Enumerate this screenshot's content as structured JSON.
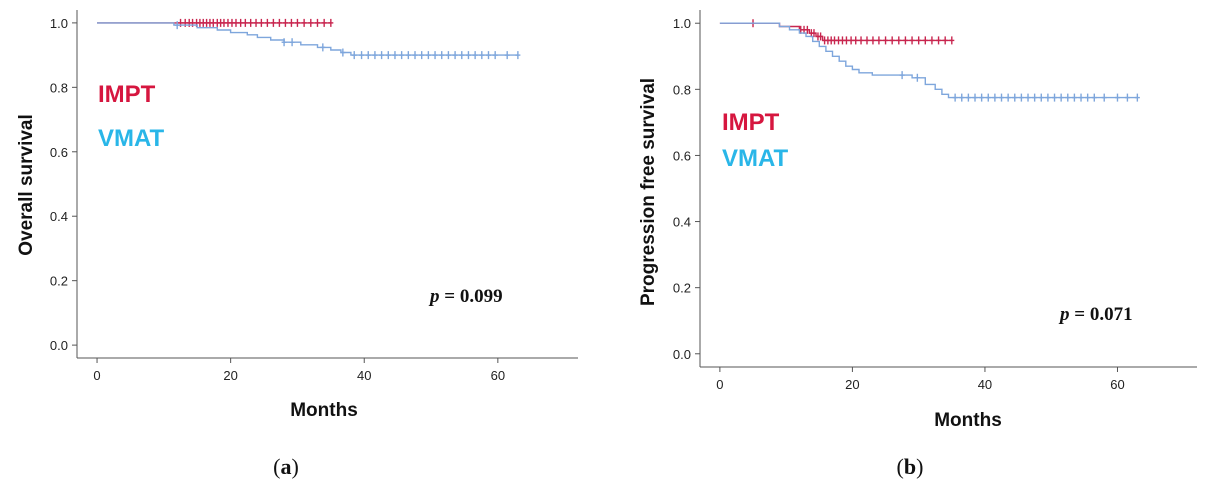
{
  "chart_data": [
    {
      "type": "line",
      "caption": {
        "open": "(",
        "letter": "a",
        "close": ")"
      },
      "ylabel": "Overall  survival",
      "xlabel": "Months",
      "xlim": [
        -3,
        72
      ],
      "ylim": [
        -0.04,
        1.04
      ],
      "xticks": [
        0,
        20,
        40,
        60
      ],
      "yticks": [
        0.0,
        0.2,
        0.4,
        0.6,
        0.8,
        1.0
      ],
      "ytick_labels": [
        "0.0",
        "0.2",
        "0.4",
        "0.6",
        "0.8",
        "1.0"
      ],
      "pvalue": {
        "symbol": "p",
        "text": " = 0.099"
      },
      "legend": [
        {
          "name": "IMPT",
          "color": "#d6163f"
        },
        {
          "name": "VMAT",
          "color": "#29b6e8"
        }
      ],
      "series": [
        {
          "name": "IMPT",
          "color": "#c8264f",
          "steps": [
            [
              0,
              1.0
            ],
            [
              35,
              1.0
            ]
          ],
          "censored": [
            12.5,
            13.2,
            13.8,
            14.3,
            14.9,
            15.4,
            15.9,
            16.4,
            16.9,
            17.4,
            18.0,
            18.5,
            19.0,
            19.6,
            20.2,
            20.8,
            21.5,
            22.2,
            23.0,
            23.8,
            24.6,
            25.5,
            26.4,
            27.3,
            28.2,
            29.1,
            30.0,
            31.0,
            32.0,
            33.0,
            34.0,
            35.0
          ]
        },
        {
          "name": "VMAT",
          "color": "#7ea6dc",
          "steps": [
            [
              0,
              1.0
            ],
            [
              11.5,
              1.0
            ],
            [
              11.5,
              0.993
            ],
            [
              15,
              0.993
            ],
            [
              15,
              0.985
            ],
            [
              18,
              0.985
            ],
            [
              18,
              0.978
            ],
            [
              20,
              0.978
            ],
            [
              20,
              0.97
            ],
            [
              22.5,
              0.97
            ],
            [
              22.5,
              0.963
            ],
            [
              24,
              0.963
            ],
            [
              24,
              0.955
            ],
            [
              26,
              0.955
            ],
            [
              26,
              0.947
            ],
            [
              28,
              0.947
            ],
            [
              28,
              0.94
            ],
            [
              30.5,
              0.94
            ],
            [
              30.5,
              0.932
            ],
            [
              33,
              0.932
            ],
            [
              33,
              0.924
            ],
            [
              35,
              0.924
            ],
            [
              35,
              0.916
            ],
            [
              36.5,
              0.916
            ],
            [
              36.5,
              0.908
            ],
            [
              38,
              0.908
            ],
            [
              38,
              0.9
            ],
            [
              63,
              0.9
            ]
          ],
          "censored": [
            [
              12,
              0.993
            ],
            [
              28,
              0.94
            ],
            [
              29.2,
              0.94
            ],
            [
              33.8,
              0.924
            ],
            [
              36.8,
              0.908
            ],
            [
              38.5,
              0.9
            ],
            [
              39.6,
              0.9
            ],
            [
              40.6,
              0.9
            ],
            [
              41.6,
              0.9
            ],
            [
              42.6,
              0.9
            ],
            [
              43.6,
              0.9
            ],
            [
              44.6,
              0.9
            ],
            [
              45.6,
              0.9
            ],
            [
              46.6,
              0.9
            ],
            [
              47.6,
              0.9
            ],
            [
              48.6,
              0.9
            ],
            [
              49.6,
              0.9
            ],
            [
              50.6,
              0.9
            ],
            [
              51.6,
              0.9
            ],
            [
              52.6,
              0.9
            ],
            [
              53.6,
              0.9
            ],
            [
              54.6,
              0.9
            ],
            [
              55.6,
              0.9
            ],
            [
              56.6,
              0.9
            ],
            [
              57.6,
              0.9
            ],
            [
              58.6,
              0.9
            ],
            [
              59.6,
              0.9
            ],
            [
              61.4,
              0.9
            ],
            [
              63,
              0.9
            ]
          ]
        }
      ]
    },
    {
      "type": "line",
      "caption": {
        "open": "(",
        "letter": "b",
        "close": ")"
      },
      "ylabel": "Progression free survival",
      "xlabel": "Months",
      "xlim": [
        -3,
        72
      ],
      "ylim": [
        -0.04,
        1.04
      ],
      "xticks": [
        0,
        20,
        40,
        60
      ],
      "yticks": [
        0.0,
        0.2,
        0.4,
        0.6,
        0.8,
        1.0
      ],
      "ytick_labels": [
        "0.0",
        "0.2",
        "0.4",
        "0.6",
        "0.8",
        "1.0"
      ],
      "pvalue": {
        "symbol": "p",
        "text": " = 0.071"
      },
      "legend": [
        {
          "name": "IMPT",
          "color": "#d6163f"
        },
        {
          "name": "VMAT",
          "color": "#29b6e8"
        }
      ],
      "series": [
        {
          "name": "IMPT",
          "color": "#c8264f",
          "steps": [
            [
              0,
              1.0
            ],
            [
              9,
              1.0
            ],
            [
              9,
              0.99
            ],
            [
              12,
              0.99
            ],
            [
              12,
              0.98
            ],
            [
              13.5,
              0.98
            ],
            [
              13.5,
              0.97
            ],
            [
              14.5,
              0.97
            ],
            [
              14.5,
              0.96
            ],
            [
              15.5,
              0.96
            ],
            [
              15.5,
              0.948
            ],
            [
              35,
              0.948
            ]
          ],
          "censored": [
            5,
            12.2,
            12.7,
            13.2,
            13.8,
            14.2,
            14.8,
            15.2,
            15.8,
            16.3,
            16.8,
            17.3,
            17.9,
            18.5,
            19.1,
            19.8,
            20.5,
            21.3,
            22.2,
            23.1,
            24.0,
            25.0,
            26.0,
            27.0,
            28.0,
            29.0,
            30.0,
            31.0,
            32.0,
            33.0,
            34.0,
            35.0
          ]
        },
        {
          "name": "VMAT",
          "color": "#7ea6dc",
          "steps": [
            [
              0,
              1.0
            ],
            [
              9,
              1.0
            ],
            [
              9,
              0.99
            ],
            [
              10.5,
              0.99
            ],
            [
              10.5,
              0.98
            ],
            [
              12,
              0.98
            ],
            [
              12,
              0.97
            ],
            [
              13,
              0.97
            ],
            [
              13,
              0.96
            ],
            [
              14,
              0.96
            ],
            [
              14,
              0.945
            ],
            [
              15,
              0.945
            ],
            [
              15,
              0.93
            ],
            [
              16,
              0.93
            ],
            [
              16,
              0.915
            ],
            [
              17,
              0.915
            ],
            [
              17,
              0.9
            ],
            [
              18,
              0.9
            ],
            [
              18,
              0.885
            ],
            [
              19,
              0.885
            ],
            [
              19,
              0.87
            ],
            [
              20,
              0.87
            ],
            [
              20,
              0.86
            ],
            [
              21,
              0.86
            ],
            [
              21,
              0.85
            ],
            [
              23,
              0.85
            ],
            [
              23,
              0.843
            ],
            [
              29,
              0.843
            ],
            [
              29,
              0.835
            ],
            [
              31,
              0.835
            ],
            [
              31,
              0.815
            ],
            [
              32.5,
              0.815
            ],
            [
              32.5,
              0.8
            ],
            [
              33.5,
              0.8
            ],
            [
              33.5,
              0.785
            ],
            [
              34.5,
              0.785
            ],
            [
              34.5,
              0.775
            ],
            [
              63,
              0.775
            ]
          ],
          "censored": [
            [
              27.5,
              0.843
            ],
            [
              29.8,
              0.835
            ],
            [
              35.5,
              0.775
            ],
            [
              36.5,
              0.775
            ],
            [
              37.5,
              0.775
            ],
            [
              38.5,
              0.775
            ],
            [
              39.5,
              0.775
            ],
            [
              40.5,
              0.775
            ],
            [
              41.5,
              0.775
            ],
            [
              42.5,
              0.775
            ],
            [
              43.5,
              0.775
            ],
            [
              44.5,
              0.775
            ],
            [
              45.5,
              0.775
            ],
            [
              46.5,
              0.775
            ],
            [
              47.5,
              0.775
            ],
            [
              48.5,
              0.775
            ],
            [
              49.5,
              0.775
            ],
            [
              50.5,
              0.775
            ],
            [
              51.5,
              0.775
            ],
            [
              52.5,
              0.775
            ],
            [
              53.5,
              0.775
            ],
            [
              54.5,
              0.775
            ],
            [
              55.5,
              0.775
            ],
            [
              56.5,
              0.775
            ],
            [
              58,
              0.775
            ],
            [
              60,
              0.775
            ],
            [
              61.5,
              0.775
            ],
            [
              63,
              0.775
            ]
          ]
        }
      ]
    }
  ]
}
